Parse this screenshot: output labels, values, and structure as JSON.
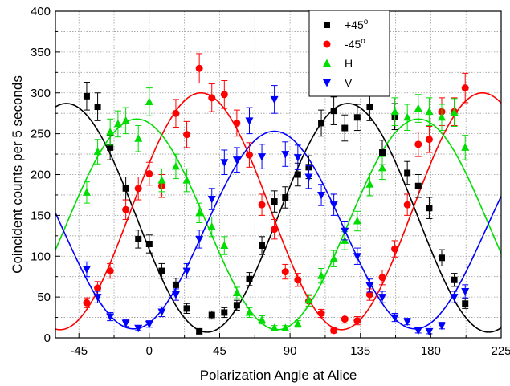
{
  "chart_data": {
    "type": "scatter",
    "title": "",
    "xlabel": "Polarization Angle at Alice",
    "ylabel": "Coincident counts per 5 seconds",
    "xlim": [
      -60,
      225
    ],
    "ylim": [
      0,
      400
    ],
    "xticks": [
      -45,
      0,
      45,
      90,
      135,
      180,
      225
    ],
    "yticks": [
      0,
      50,
      100,
      150,
      200,
      250,
      300,
      350,
      400
    ],
    "grid": "dotted",
    "legend_position": "top-center",
    "series": [
      {
        "name": "+45°",
        "legend_label": "+45",
        "legend_sup": "o",
        "marker": "square",
        "color": "#000000",
        "fit": {
          "offset": 147,
          "amplitude": 140,
          "phase": 127
        },
        "points": [
          [
            -40,
            296,
            17
          ],
          [
            -33,
            283,
            17
          ],
          [
            -25,
            233,
            15
          ],
          [
            -15,
            183,
            14
          ],
          [
            -7,
            121,
            11
          ],
          [
            0,
            115,
            11
          ],
          [
            8,
            82,
            9
          ],
          [
            17,
            65,
            8
          ],
          [
            24,
            36,
            6
          ],
          [
            32,
            8,
            3
          ],
          [
            40,
            28,
            5
          ],
          [
            48,
            31,
            6
          ],
          [
            56,
            40,
            6
          ],
          [
            64,
            72,
            8
          ],
          [
            72,
            113,
            11
          ],
          [
            80,
            167,
            13
          ],
          [
            87,
            172,
            13
          ],
          [
            95,
            200,
            14
          ],
          [
            102,
            209,
            14
          ],
          [
            110,
            263,
            16
          ],
          [
            118,
            278,
            17
          ],
          [
            125,
            257,
            16
          ],
          [
            133,
            270,
            16
          ],
          [
            141,
            283,
            17
          ],
          [
            149,
            227,
            15
          ],
          [
            157,
            271,
            16
          ],
          [
            165,
            202,
            14
          ],
          [
            172,
            186,
            14
          ],
          [
            179,
            159,
            13
          ],
          [
            187,
            98,
            10
          ],
          [
            195,
            71,
            8
          ],
          [
            202,
            42,
            6
          ]
        ]
      },
      {
        "name": "-45°",
        "legend_label": "-45",
        "legend_sup": "o",
        "marker": "circle",
        "color": "#ff0000",
        "fit": {
          "offset": 155,
          "amplitude": 145,
          "phase": 33
        },
        "points": [
          [
            -40,
            43,
            6
          ],
          [
            -33,
            61,
            8
          ],
          [
            -25,
            82,
            9
          ],
          [
            -15,
            157,
            12
          ],
          [
            -7,
            183,
            14
          ],
          [
            0,
            201,
            14
          ],
          [
            8,
            186,
            14
          ],
          [
            17,
            275,
            17
          ],
          [
            24,
            249,
            16
          ],
          [
            32,
            330,
            18
          ],
          [
            40,
            294,
            17
          ],
          [
            48,
            298,
            17
          ],
          [
            56,
            263,
            16
          ],
          [
            64,
            224,
            15
          ],
          [
            72,
            163,
            13
          ],
          [
            80,
            133,
            12
          ],
          [
            87,
            81,
            9
          ],
          [
            95,
            71,
            8
          ],
          [
            102,
            45,
            7
          ],
          [
            110,
            30,
            5
          ],
          [
            118,
            9,
            3
          ],
          [
            125,
            23,
            5
          ],
          [
            133,
            21,
            5
          ],
          [
            141,
            53,
            7
          ],
          [
            149,
            74,
            9
          ],
          [
            157,
            109,
            10
          ],
          [
            165,
            163,
            13
          ],
          [
            172,
            237,
            15
          ],
          [
            179,
            243,
            16
          ],
          [
            187,
            277,
            17
          ],
          [
            195,
            277,
            17
          ],
          [
            202,
            306,
            18
          ]
        ]
      },
      {
        "name": "H",
        "legend_label": "H",
        "legend_sup": "",
        "marker": "triangle-up",
        "color": "#00dd00",
        "fit": {
          "offset": 139,
          "amplitude": 129,
          "phase": -8
        },
        "points": [
          [
            -40,
            178,
            13
          ],
          [
            -33,
            228,
            15
          ],
          [
            -25,
            252,
            16
          ],
          [
            -20,
            262,
            16
          ],
          [
            -15,
            266,
            16
          ],
          [
            -7,
            244,
            16
          ],
          [
            0,
            289,
            17
          ],
          [
            8,
            193,
            14
          ],
          [
            17,
            210,
            15
          ],
          [
            24,
            193,
            14
          ],
          [
            32,
            153,
            12
          ],
          [
            40,
            136,
            12
          ],
          [
            48,
            113,
            11
          ],
          [
            56,
            55,
            7
          ],
          [
            64,
            31,
            6
          ],
          [
            72,
            22,
            5
          ],
          [
            80,
            12,
            3
          ],
          [
            87,
            12,
            3
          ],
          [
            95,
            17,
            4
          ],
          [
            102,
            46,
            7
          ],
          [
            110,
            76,
            9
          ],
          [
            118,
            97,
            10
          ],
          [
            125,
            119,
            11
          ],
          [
            133,
            143,
            12
          ],
          [
            141,
            188,
            14
          ],
          [
            149,
            208,
            14
          ],
          [
            157,
            277,
            17
          ],
          [
            165,
            270,
            16
          ],
          [
            172,
            281,
            17
          ],
          [
            179,
            277,
            17
          ],
          [
            187,
            270,
            16
          ],
          [
            195,
            276,
            17
          ],
          [
            202,
            233,
            15
          ]
        ]
      },
      {
        "name": "V",
        "legend_label": "V",
        "legend_sup": "",
        "marker": "triangle-down",
        "color": "#0000ff",
        "fit": {
          "offset": 132,
          "amplitude": 121,
          "phase": 80
        },
        "points": [
          [
            -40,
            84,
            9
          ],
          [
            -33,
            50,
            7
          ],
          [
            -25,
            26,
            5
          ],
          [
            -15,
            18,
            4
          ],
          [
            -7,
            12,
            3
          ],
          [
            0,
            17,
            4
          ],
          [
            8,
            32,
            6
          ],
          [
            17,
            53,
            7
          ],
          [
            24,
            82,
            9
          ],
          [
            32,
            121,
            11
          ],
          [
            40,
            170,
            13
          ],
          [
            48,
            215,
            15
          ],
          [
            56,
            218,
            15
          ],
          [
            64,
            266,
            16
          ],
          [
            72,
            222,
            15
          ],
          [
            80,
            292,
            17
          ],
          [
            87,
            225,
            15
          ],
          [
            95,
            221,
            15
          ],
          [
            102,
            197,
            14
          ],
          [
            110,
            175,
            13
          ],
          [
            118,
            163,
            13
          ],
          [
            125,
            131,
            11
          ],
          [
            133,
            100,
            10
          ],
          [
            141,
            64,
            8
          ],
          [
            149,
            50,
            7
          ],
          [
            157,
            25,
            5
          ],
          [
            165,
            20,
            4
          ],
          [
            172,
            9,
            3
          ],
          [
            179,
            8,
            3
          ],
          [
            187,
            15,
            4
          ],
          [
            195,
            50,
            7
          ],
          [
            202,
            57,
            8
          ]
        ]
      }
    ]
  }
}
